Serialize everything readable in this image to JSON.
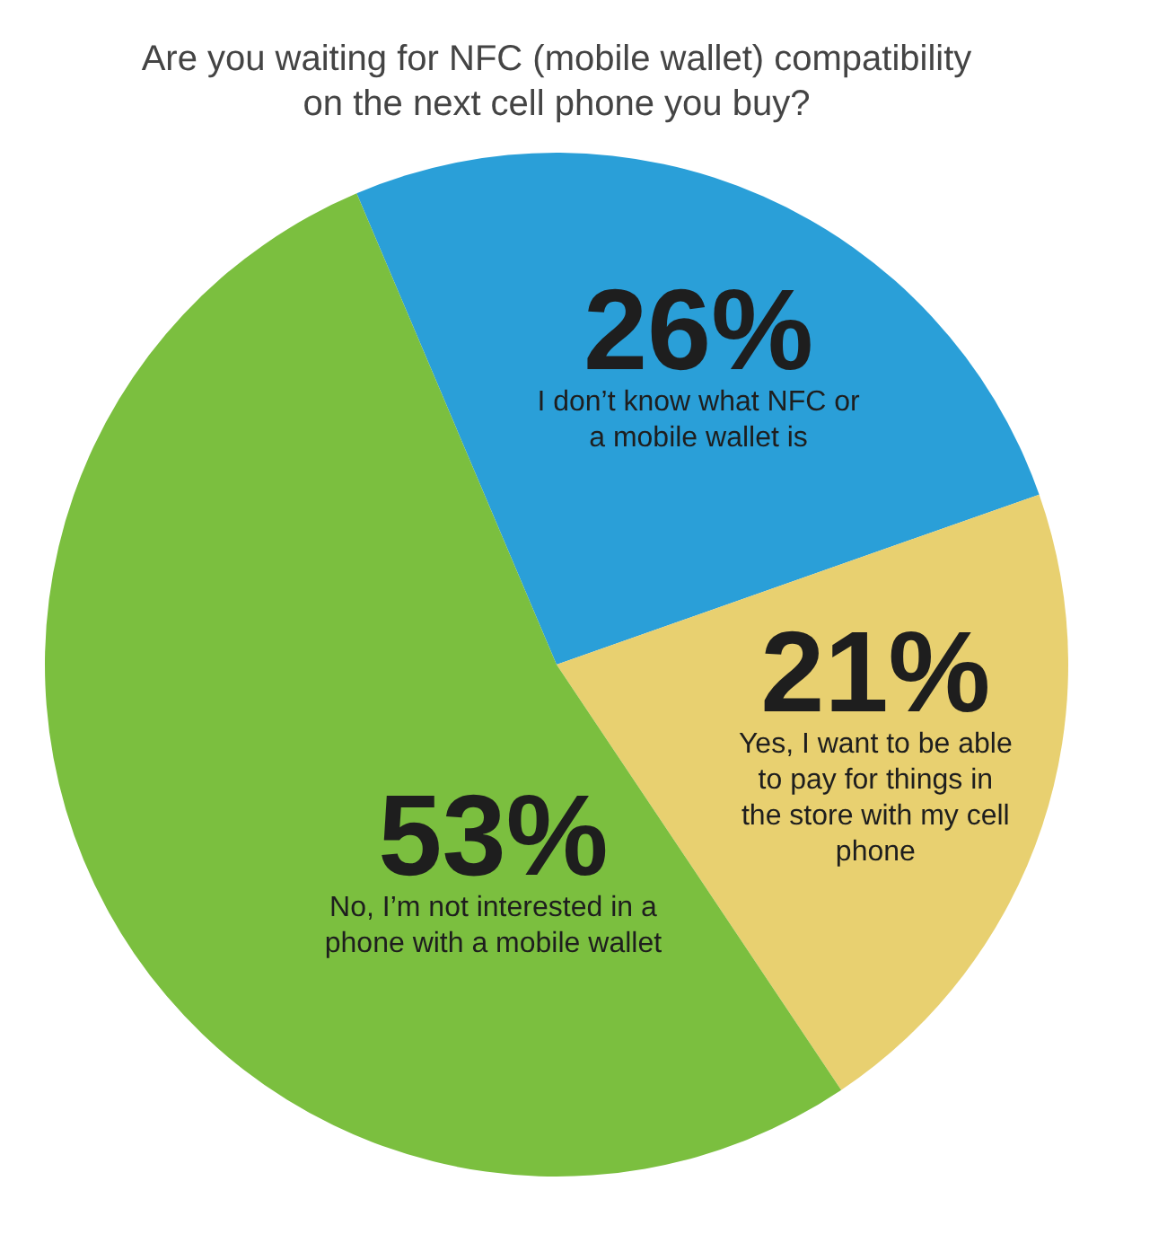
{
  "chart_data": {
    "type": "pie",
    "title": "Are you waiting for NFC (mobile wallet) compatibility on the next cell phone you buy?",
    "categories": [
      "I don’t know what NFC or a mobile wallet is",
      "Yes, I want to be able to pay for things in the store with my cell phone",
      "No, I’m not interested in a phone with a mobile wallet"
    ],
    "values": [
      26,
      21,
      53
    ],
    "colors": [
      "#2a9fd8",
      "#e8d070",
      "#7bbf3f"
    ],
    "value_labels": [
      "26%",
      "21%",
      "53%"
    ]
  }
}
